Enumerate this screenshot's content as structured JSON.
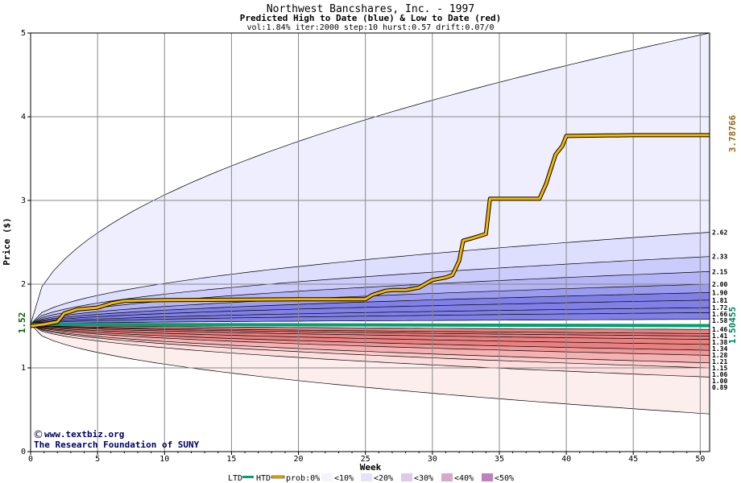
{
  "header": {
    "title": "Northwest Bancshares, Inc. - 1997",
    "subtitle": "Predicted High to Date (blue) &  Low to Date (red)",
    "params": "vol:1.84% iter:2000 step:10 hurst:0.57 drift:0.07/0"
  },
  "watermark": {
    "line1": "www.textbiz.org",
    "line2": "The Research Foundation of SUNY"
  },
  "legend": {
    "ltd": "LTD",
    "htd": "HTD",
    "prob": "prob:0%",
    "b10": "<10%",
    "b20": "<20%",
    "b30": "<30%",
    "b40": "<40%",
    "b50": "<50%"
  },
  "colors": {
    "background": "#ffffff",
    "grid": "#888888",
    "actual_line": "#f5b800",
    "ltd_line": "#00a070",
    "start_label": "#006400",
    "right_label_low": "#008060",
    "right_label_high": "#8b6914",
    "blue_bands": [
      "#eeeefe",
      "#dedefe",
      "#ccccfc",
      "#b4b4f6",
      "#9b9bef",
      "#8080e8"
    ],
    "red_bands": [
      "#fdeeee",
      "#fcdede",
      "#facccc",
      "#f6b2b2",
      "#f09898",
      "#ea8080"
    ]
  },
  "chart_data": {
    "type": "area",
    "title": "Northwest Bancshares, Inc. - 1997",
    "subtitle": "Predicted High to Date (blue) &  Low to Date (red)",
    "xlabel": "Week",
    "ylabel": "Price ($)",
    "xlim": [
      0,
      50.7
    ],
    "ylim": [
      0,
      5
    ],
    "x_ticks": [
      0,
      5,
      10,
      15,
      20,
      25,
      30,
      35,
      40,
      45,
      50
    ],
    "y_ticks": [
      0,
      1,
      2,
      3,
      4,
      5
    ],
    "grid": true,
    "start_price": "1.52",
    "start_value": 1.52,
    "ltd_value": "1.50455",
    "htd_value": "3.78766",
    "high_band_endpoints": [
      5.0,
      2.62,
      2.33,
      2.15,
      2.0,
      1.9,
      1.81,
      1.72,
      1.66,
      1.58
    ],
    "high_band_labels": [
      "2.62",
      "2.33",
      "2.15",
      "2.00",
      "1.90",
      "1.81",
      "1.72",
      "1.66",
      "1.58"
    ],
    "low_band_endpoints": [
      0.45,
      0.89,
      1.0,
      1.06,
      1.15,
      1.21,
      1.28,
      1.34,
      1.38,
      1.41,
      1.46
    ],
    "low_band_labels": [
      "1.46",
      "1.41",
      "1.38",
      "1.34",
      "1.28",
      "1.21",
      "1.15",
      "1.06",
      "1.00",
      "0.89"
    ],
    "series": [
      {
        "name": "HTD",
        "x": [
          0,
          1,
          2,
          2.5,
          3.5,
          5,
          6,
          7,
          10,
          20,
          25,
          25.5,
          26.5,
          27,
          28,
          29,
          30,
          31,
          31.5,
          32,
          32.3,
          33,
          34,
          34.3,
          38,
          38.5,
          39.2,
          39.7,
          40,
          45,
          50.7
        ],
        "y": [
          1.5,
          1.52,
          1.55,
          1.65,
          1.7,
          1.72,
          1.77,
          1.8,
          1.81,
          1.82,
          1.82,
          1.87,
          1.92,
          1.93,
          1.93,
          1.96,
          2.05,
          2.08,
          2.11,
          2.28,
          2.52,
          2.55,
          2.6,
          3.02,
          3.02,
          3.2,
          3.55,
          3.65,
          3.77,
          3.78,
          3.78
        ]
      },
      {
        "name": "LTD",
        "x": [
          0,
          50.7
        ],
        "y": [
          1.52,
          1.50455
        ]
      }
    ]
  }
}
